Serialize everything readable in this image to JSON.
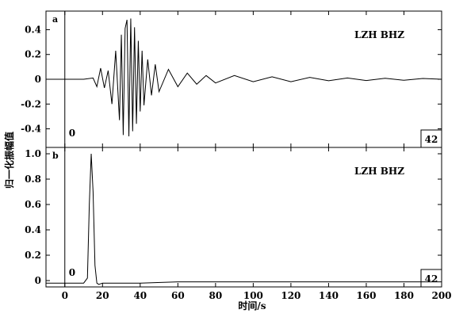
{
  "chart_data": [
    {
      "type": "line",
      "panel_label": "a",
      "station": "LZH",
      "component": "BHZ",
      "marker_left": "0",
      "marker_right": "42",
      "xlim": [
        -10,
        200
      ],
      "ylim": [
        -0.55,
        0.55
      ],
      "yticks": [
        -0.4,
        -0.2,
        0,
        0.2,
        0.4
      ],
      "ytick_labels": [
        "-0.4",
        "-0.2",
        "0",
        "0.2",
        "0.4"
      ],
      "series": [
        {
          "x": [
            -10,
            0,
            10,
            15,
            17,
            19,
            21,
            23,
            25,
            27,
            29,
            30,
            31,
            32,
            33,
            34,
            35,
            36,
            37,
            38,
            39,
            40,
            41,
            42,
            44,
            46,
            48,
            50,
            55,
            60,
            65,
            70,
            75,
            80,
            90,
            100,
            110,
            120,
            130,
            140,
            150,
            160,
            170,
            180,
            190,
            200
          ],
          "y": [
            0,
            0,
            0,
            0.01,
            -0.06,
            0.09,
            -0.07,
            0.07,
            -0.2,
            0.23,
            -0.33,
            0.36,
            -0.45,
            0.41,
            0.48,
            -0.46,
            0.49,
            -0.42,
            0.42,
            -0.36,
            0.31,
            -0.26,
            0.23,
            -0.21,
            0.16,
            -0.13,
            0.12,
            -0.1,
            0.08,
            -0.06,
            0.05,
            -0.04,
            0.03,
            -0.03,
            0.03,
            -0.02,
            0.02,
            -0.02,
            0.015,
            -0.012,
            0.01,
            -0.01,
            0.008,
            -0.008,
            0.006,
            0
          ]
        }
      ]
    },
    {
      "type": "line",
      "panel_label": "b",
      "station": "LZH",
      "component": "BHZ",
      "marker_left": "0",
      "marker_right": "42",
      "xlim": [
        -10,
        200
      ],
      "ylim": [
        -0.05,
        1.05
      ],
      "yticks": [
        0,
        0.2,
        0.4,
        0.6,
        0.8,
        1.0
      ],
      "ytick_labels": [
        "0",
        "0.2",
        "0.4",
        "0.6",
        "0.8",
        "1.0"
      ],
      "xticks": [
        0,
        20,
        40,
        60,
        80,
        100,
        120,
        140,
        160,
        180,
        200
      ],
      "xtick_labels": [
        "0",
        "20",
        "40",
        "60",
        "80",
        "100",
        "120",
        "140",
        "160",
        "180",
        "200"
      ],
      "series": [
        {
          "x": [
            -10,
            0,
            10,
            12,
            13,
            14,
            15,
            16,
            17,
            18,
            20,
            30,
            40,
            60,
            80,
            100,
            120,
            140,
            160,
            180,
            200
          ],
          "y": [
            -0.02,
            -0.02,
            -0.02,
            0.02,
            0.6,
            1.0,
            0.7,
            0.12,
            -0.02,
            -0.03,
            -0.02,
            -0.02,
            -0.02,
            -0.01,
            -0.01,
            -0.01,
            -0.01,
            -0.01,
            -0.01,
            -0.01,
            -0.01
          ]
        }
      ]
    }
  ],
  "labels": {
    "ylabel": "归一化振幅值",
    "xlabel": "时间/s"
  }
}
